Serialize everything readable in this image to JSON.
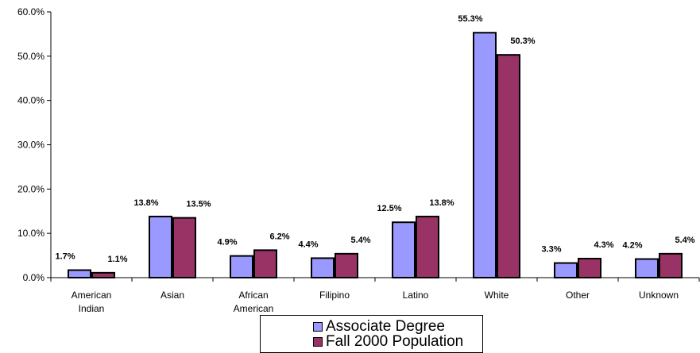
{
  "chart_data": {
    "type": "bar",
    "categories": [
      [
        "American",
        "Indian"
      ],
      [
        "Asian"
      ],
      [
        "African",
        "American"
      ],
      [
        "Filipino"
      ],
      [
        "Latino"
      ],
      [
        "White"
      ],
      [
        "Other"
      ],
      [
        "Unknown"
      ]
    ],
    "series": [
      {
        "name": "Associate Degree",
        "color": "#9999ff",
        "values": [
          1.7,
          13.8,
          4.9,
          4.4,
          12.5,
          55.3,
          3.3,
          4.2
        ],
        "labels": [
          "1.7%",
          "13.8%",
          "4.9%",
          "4.4%",
          "12.5%",
          "55.3%",
          "3.3%",
          "4.2%"
        ]
      },
      {
        "name": "Fall 2000 Population",
        "color": "#993366",
        "values": [
          1.1,
          13.5,
          6.2,
          5.4,
          13.8,
          50.3,
          4.3,
          5.4
        ],
        "labels": [
          "1.1%",
          "13.5%",
          "6.2%",
          "5.4%",
          "13.8%",
          "50.3%",
          "4.3%",
          "5.4%"
        ]
      }
    ],
    "ylim": [
      0,
      60
    ],
    "yticks": [
      0,
      10,
      20,
      30,
      40,
      50,
      60
    ],
    "ytick_labels": [
      "0.0%",
      "10.0%",
      "20.0%",
      "30.0%",
      "40.0%",
      "50.0%",
      "60.0%"
    ],
    "grid": false,
    "legend_position": "bottom"
  }
}
